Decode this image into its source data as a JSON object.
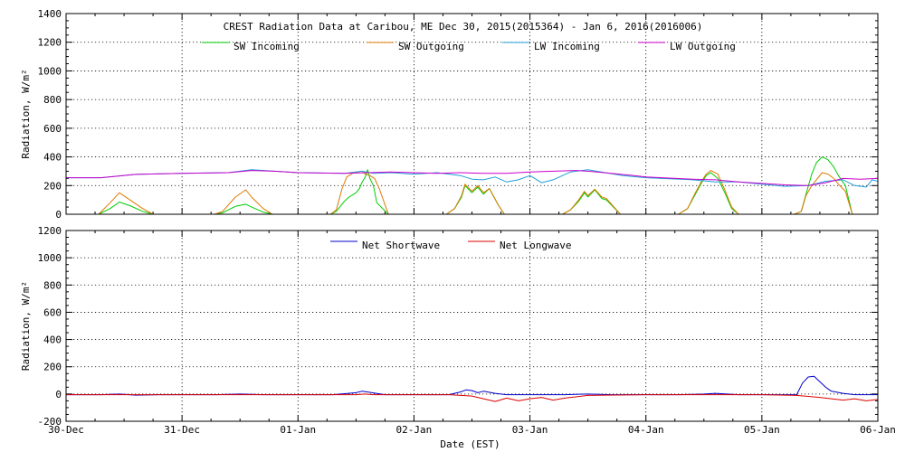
{
  "chart_data": [
    {
      "type": "line",
      "title": "CREST Radiation Data at Caribou, ME   Dec 30, 2015(2015364) - Jan  6, 2016(2016006)",
      "ylabel": "Radiation, W/m^2",
      "xlabel": "",
      "ylim": [
        0,
        1400
      ],
      "yticks": [
        0,
        200,
        400,
        600,
        800,
        1000,
        1200,
        1400
      ],
      "xlim": [
        0,
        7
      ],
      "xtick_labels": [
        "30-Dec",
        "31-Dec",
        "01-Jan",
        "02-Jan",
        "03-Jan",
        "04-Jan",
        "05-Jan",
        "06-Jan"
      ],
      "grid": true,
      "legend_placement": "top",
      "series": [
        {
          "name": "SW Incoming",
          "color": "#00cc00",
          "x": [
            0,
            0.28,
            0.38,
            0.46,
            0.55,
            0.66,
            0.75,
            1.28,
            1.35,
            1.46,
            1.55,
            1.6,
            1.7,
            1.78,
            2.28,
            2.33,
            2.4,
            2.44,
            2.5,
            2.53,
            2.55,
            2.58,
            2.6,
            2.62,
            2.65,
            2.68,
            2.78,
            3.28,
            3.35,
            3.41,
            3.44,
            3.5,
            3.55,
            3.6,
            3.65,
            3.73,
            3.78,
            4.28,
            4.35,
            4.42,
            4.47,
            4.5,
            4.56,
            4.62,
            4.66,
            4.78,
            5.28,
            5.36,
            5.42,
            5.48,
            5.52,
            5.56,
            5.62,
            5.68,
            5.74,
            5.8,
            6.28,
            6.34,
            6.38,
            6.43,
            6.47,
            6.52,
            6.57,
            6.62,
            6.66,
            6.72,
            6.78,
            7
          ],
          "y": [
            0,
            0,
            40,
            85,
            60,
            20,
            0,
            0,
            10,
            55,
            70,
            50,
            15,
            0,
            0,
            20,
            90,
            120,
            150,
            180,
            220,
            260,
            310,
            250,
            200,
            80,
            0,
            0,
            40,
            120,
            200,
            150,
            190,
            140,
            180,
            60,
            0,
            0,
            30,
            90,
            150,
            120,
            170,
            110,
            100,
            0,
            0,
            40,
            130,
            220,
            270,
            290,
            250,
            150,
            40,
            0,
            0,
            20,
            140,
            280,
            360,
            400,
            380,
            330,
            270,
            200,
            0,
            0
          ]
        },
        {
          "name": "SW Outgoing",
          "color": "#e07800",
          "x": [
            0,
            0.28,
            0.38,
            0.46,
            0.55,
            0.66,
            0.75,
            1.28,
            1.35,
            1.46,
            1.55,
            1.6,
            1.7,
            1.78,
            2.28,
            2.33,
            2.38,
            2.42,
            2.48,
            2.55,
            2.58,
            2.62,
            2.66,
            2.7,
            2.78,
            3.28,
            3.35,
            3.41,
            3.44,
            3.5,
            3.55,
            3.6,
            3.65,
            3.73,
            3.78,
            4.28,
            4.35,
            4.42,
            4.47,
            4.5,
            4.56,
            4.62,
            4.66,
            4.78,
            5.28,
            5.36,
            5.42,
            5.48,
            5.52,
            5.56,
            5.62,
            5.68,
            5.74,
            5.8,
            6.28,
            6.34,
            6.38,
            6.43,
            6.47,
            6.52,
            6.57,
            6.62,
            6.66,
            6.72,
            6.78,
            7
          ],
          "y": [
            0,
            0,
            80,
            150,
            100,
            40,
            0,
            0,
            20,
            120,
            170,
            120,
            40,
            0,
            0,
            30,
            180,
            260,
            290,
            300,
            280,
            270,
            250,
            180,
            0,
            0,
            40,
            130,
            210,
            160,
            200,
            150,
            180,
            60,
            0,
            0,
            30,
            100,
            160,
            130,
            175,
            120,
            110,
            0,
            0,
            40,
            140,
            230,
            280,
            305,
            280,
            170,
            50,
            0,
            0,
            20,
            130,
            200,
            240,
            290,
            280,
            250,
            210,
            160,
            0,
            0
          ]
        },
        {
          "name": "LW Incoming",
          "color": "#1fa0d8",
          "x": [
            0,
            0.3,
            0.6,
            1.0,
            1.4,
            1.6,
            2.0,
            2.4,
            2.55,
            2.65,
            2.8,
            3.0,
            3.2,
            3.4,
            3.5,
            3.6,
            3.7,
            3.8,
            3.9,
            4.0,
            4.1,
            4.2,
            4.35,
            4.5,
            4.8,
            5.0,
            5.4,
            5.6,
            5.8,
            6.0,
            6.2,
            6.4,
            6.55,
            6.7,
            6.8,
            6.9,
            6.95,
            7
          ],
          "y": [
            255,
            255,
            278,
            285,
            290,
            310,
            290,
            285,
            300,
            285,
            290,
            280,
            290,
            270,
            245,
            240,
            260,
            225,
            240,
            270,
            220,
            240,
            295,
            310,
            270,
            255,
            240,
            225,
            225,
            210,
            195,
            200,
            230,
            240,
            200,
            190,
            240,
            230
          ]
        },
        {
          "name": "LW Outgoing",
          "color": "#cc00cc",
          "x": [
            0,
            0.3,
            0.6,
            1.0,
            1.4,
            1.6,
            1.8,
            2.0,
            2.4,
            2.6,
            2.8,
            3.0,
            3.2,
            3.4,
            3.6,
            3.8,
            4.0,
            4.2,
            4.4,
            4.5,
            4.7,
            4.9,
            5.0,
            5.4,
            5.6,
            5.8,
            6.0,
            6.2,
            6.4,
            6.55,
            6.7,
            6.85,
            7
          ],
          "y": [
            255,
            255,
            278,
            285,
            290,
            305,
            300,
            290,
            285,
            290,
            295,
            290,
            285,
            290,
            285,
            285,
            295,
            300,
            305,
            300,
            285,
            270,
            260,
            245,
            240,
            225,
            215,
            205,
            200,
            220,
            250,
            245,
            250
          ]
        }
      ]
    },
    {
      "type": "line",
      "title": "",
      "ylabel": "Radiation, W/m^2",
      "xlabel": "Date (EST)",
      "ylim": [
        -200,
        1200
      ],
      "yticks": [
        -200,
        0,
        200,
        400,
        600,
        800,
        1000,
        1200
      ],
      "xlim": [
        0,
        7
      ],
      "xtick_labels": [
        "30-Dec",
        "31-Dec",
        "01-Jan",
        "02-Jan",
        "03-Jan",
        "04-Jan",
        "05-Jan",
        "06-Jan"
      ],
      "grid": true,
      "legend_placement": "top",
      "series": [
        {
          "name": "Net Shortwave",
          "color": "#0000cc",
          "x": [
            0,
            0.3,
            0.46,
            0.6,
            0.8,
            1.3,
            1.5,
            1.7,
            2.0,
            2.3,
            2.5,
            2.55,
            2.6,
            2.75,
            3.0,
            3.3,
            3.4,
            3.45,
            3.5,
            3.55,
            3.6,
            3.7,
            3.8,
            4.3,
            4.5,
            4.7,
            5.0,
            5.3,
            5.5,
            5.6,
            5.8,
            6.0,
            6.3,
            6.35,
            6.4,
            6.45,
            6.5,
            6.55,
            6.6,
            6.7,
            6.8,
            7
          ],
          "y": [
            -5,
            -5,
            0,
            -8,
            -5,
            -5,
            0,
            -5,
            -5,
            -5,
            10,
            20,
            15,
            -5,
            -5,
            -5,
            15,
            30,
            25,
            10,
            20,
            5,
            -5,
            -5,
            0,
            -5,
            -5,
            -5,
            0,
            5,
            -5,
            -5,
            -5,
            80,
            125,
            130,
            90,
            50,
            20,
            5,
            -5,
            -5
          ]
        },
        {
          "name": "Net Longwave",
          "color": "#dd0000",
          "x": [
            0,
            0.5,
            1.0,
            1.5,
            2.0,
            2.3,
            2.5,
            2.58,
            2.65,
            2.8,
            3.0,
            3.3,
            3.5,
            3.6,
            3.7,
            3.8,
            3.9,
            4.0,
            4.1,
            4.2,
            4.3,
            4.5,
            5.0,
            5.5,
            6.0,
            6.3,
            6.5,
            6.7,
            6.8,
            6.9,
            7
          ],
          "y": [
            -5,
            -5,
            -5,
            -5,
            -5,
            -5,
            -5,
            0,
            -5,
            -5,
            -5,
            -5,
            -15,
            -35,
            -55,
            -30,
            -50,
            -35,
            -25,
            -45,
            -30,
            -10,
            -5,
            -5,
            -5,
            -10,
            -25,
            -45,
            -35,
            -50,
            -40
          ]
        }
      ]
    }
  ]
}
